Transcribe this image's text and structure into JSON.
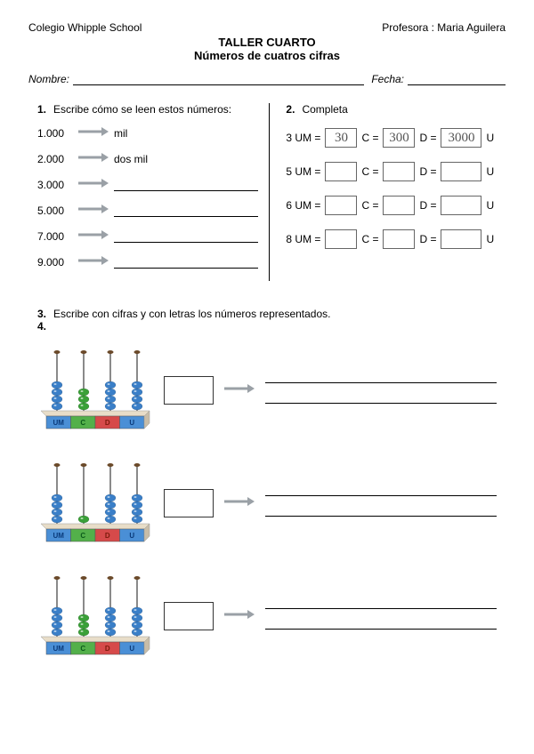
{
  "header": {
    "school": "Colegio Whipple School",
    "teacher": "Profesora : Maria Aguilera"
  },
  "title": "TALLER   CUARTO",
  "subtitle": "Números de cuatros cifras",
  "labels": {
    "name": "Nombre:",
    "date": "Fecha:"
  },
  "q1": {
    "num": "1.",
    "text": "Escribe cómo se leen estos números:",
    "rows": [
      {
        "n": "1.000",
        "w": "mil"
      },
      {
        "n": "2.000",
        "w": "dos mil"
      },
      {
        "n": "3.000",
        "w": ""
      },
      {
        "n": "5.000",
        "w": ""
      },
      {
        "n": "7.000",
        "w": ""
      },
      {
        "n": "9.000",
        "w": ""
      }
    ]
  },
  "q2": {
    "num": "2.",
    "text": "Completa",
    "unit_labels": {
      "um": "UM =",
      "c": "C =",
      "d": "D =",
      "u": "U"
    },
    "rows": [
      {
        "um": "3",
        "c": "30",
        "d": "300",
        "u": "3000"
      },
      {
        "um": "5",
        "c": "",
        "d": "",
        "u": ""
      },
      {
        "um": "6",
        "c": "",
        "d": "",
        "u": ""
      },
      {
        "um": "8",
        "c": "",
        "d": "",
        "u": ""
      }
    ]
  },
  "q3": {
    "num": "3.",
    "text": "Escribe con cifras y con letras los números representados.",
    "num2": "4."
  },
  "abacus": {
    "col_labels": [
      "UM",
      "C",
      "D",
      "U"
    ],
    "base_colors": [
      "#4a8fd6",
      "#53b04a",
      "#d64a4a",
      "#4a8fd6"
    ],
    "base_label_colors": [
      "#0a3a7a",
      "#0a5a1a",
      "#7a1a0a",
      "#0a3a7a"
    ],
    "bead_colors": [
      "#3a7fc8",
      "#3aa038",
      "#3a7fc8",
      "#3a7fc8"
    ],
    "rod_color": "#8a8a8a",
    "top_ring_color": "#6b4a2a",
    "items": [
      {
        "beads": [
          4,
          3,
          4,
          4
        ]
      },
      {
        "beads": [
          4,
          1,
          4,
          4
        ]
      },
      {
        "beads": [
          4,
          3,
          4,
          4
        ]
      }
    ]
  },
  "colors": {
    "arrow": "#9aa0a6",
    "arrow_dark": "#7a8086"
  }
}
